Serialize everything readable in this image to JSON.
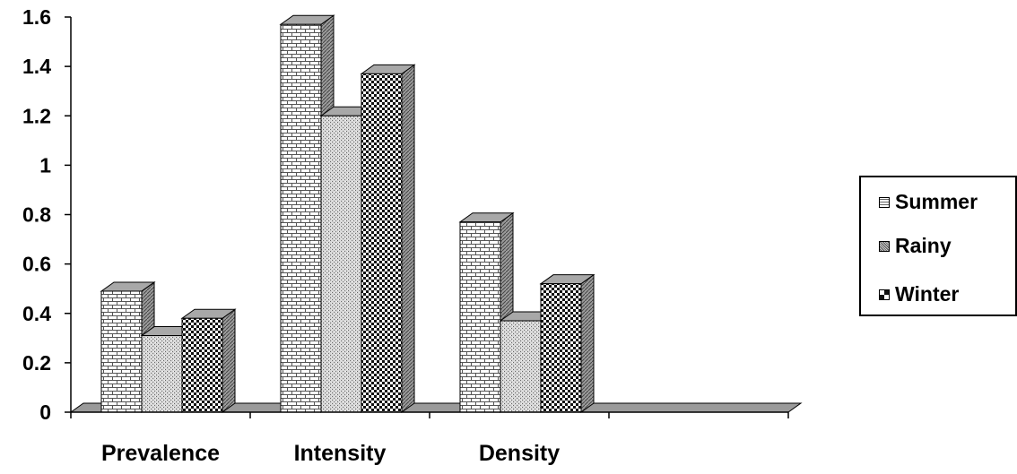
{
  "chart_data": {
    "type": "bar",
    "title": "",
    "xlabel": "",
    "ylabel": "",
    "categories": [
      "Prevalence",
      "Intensity",
      "Density"
    ],
    "series": [
      {
        "name": "Summer",
        "values": [
          0.49,
          1.57,
          0.77
        ]
      },
      {
        "name": "Rainy",
        "values": [
          0.31,
          1.2,
          0.37
        ]
      },
      {
        "name": "Winter",
        "values": [
          0.38,
          1.37,
          0.52
        ]
      }
    ],
    "ylim": [
      0,
      1.6
    ],
    "yticks": [
      "0",
      "0.2",
      "0.4",
      "0.6",
      "0.8",
      "1",
      "1.2",
      "1.4",
      "1.6"
    ],
    "grid": false,
    "legend_position": "right",
    "three_d": true
  },
  "colors": {
    "background": "#ffffff",
    "floor": "#9a9a9a",
    "bar_side": "#8a8a8a",
    "bar_top": "#a8a8a8"
  }
}
